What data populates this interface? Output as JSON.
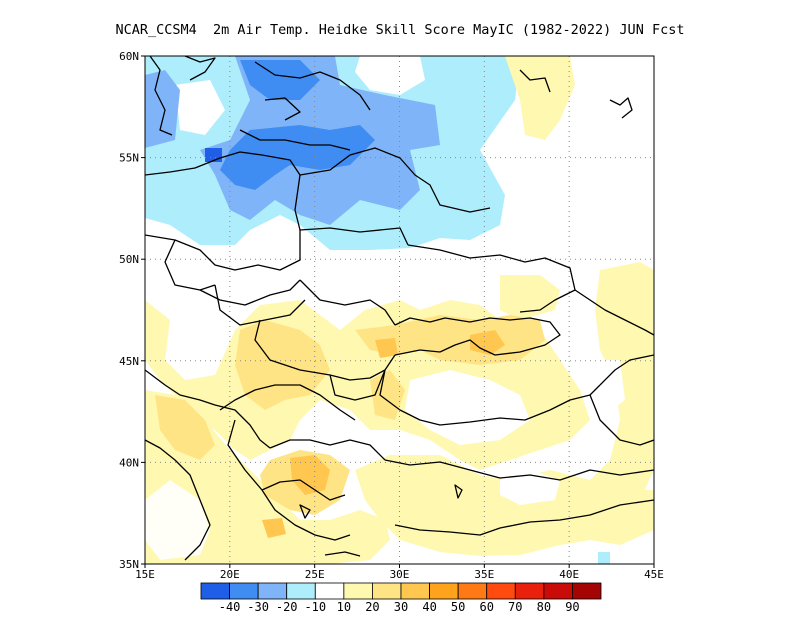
{
  "title": "NCAR_CCSM4  2m Air Temp. Heidke Skill Score MayIC (1982-2022) JUN Fcst",
  "map": {
    "lon_range": [
      15,
      45
    ],
    "lat_range": [
      35,
      60
    ],
    "x_ticks": [
      {
        "value": 15,
        "label": "15E"
      },
      {
        "value": 20,
        "label": "20E"
      },
      {
        "value": 25,
        "label": "25E"
      },
      {
        "value": 30,
        "label": "30E"
      },
      {
        "value": 35,
        "label": "35E"
      },
      {
        "value": 40,
        "label": "40E"
      },
      {
        "value": 45,
        "label": "45E"
      }
    ],
    "y_ticks": [
      {
        "value": 35,
        "label": "35N"
      },
      {
        "value": 40,
        "label": "40N"
      },
      {
        "value": 45,
        "label": "45N"
      },
      {
        "value": 50,
        "label": "50N"
      },
      {
        "value": 55,
        "label": "55N"
      },
      {
        "value": 60,
        "label": "60N"
      }
    ],
    "grid": true
  },
  "colorbar": {
    "colors": [
      "#1f5fe8",
      "#3f8cf2",
      "#7fb5f8",
      "#aeeefc",
      "#ffffff",
      "#fff8b0",
      "#ffe485",
      "#ffc74f",
      "#ffa31c",
      "#ff7a14",
      "#ff4a10",
      "#e8200c",
      "#c90c08",
      "#a50404"
    ],
    "labels": [
      "-40",
      "-30",
      "-20",
      "-10",
      "10",
      "20",
      "30",
      "40",
      "50",
      "60",
      "70",
      "80",
      "90"
    ]
  }
}
